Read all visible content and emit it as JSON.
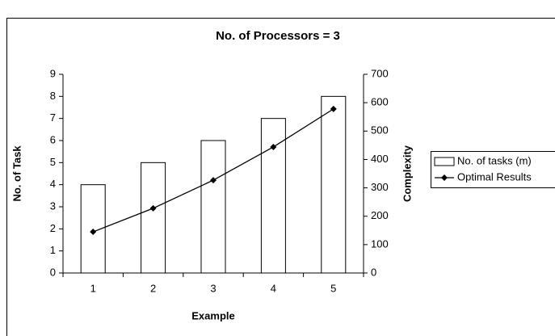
{
  "chart_data": {
    "type": "bar",
    "title": "No. of Processors = 3",
    "xlabel": "Example",
    "ylabel": "No. of Task",
    "y2label": "Complexity",
    "categories": [
      "1",
      "2",
      "3",
      "4",
      "5"
    ],
    "series": [
      {
        "name": "No. of tasks (m)",
        "type": "bar",
        "color": "#ffffff",
        "values": [
          4,
          5,
          6,
          7,
          8
        ]
      },
      {
        "name": "Optimal Results",
        "type": "line",
        "axis": "y2",
        "color": "#000000",
        "values": [
          145,
          228,
          327,
          444,
          578
        ]
      }
    ],
    "ylim": [
      0,
      9
    ],
    "yticks": [
      0,
      1,
      2,
      3,
      4,
      5,
      6,
      7,
      8,
      9
    ],
    "y2lim": [
      0,
      700
    ],
    "y2ticks": [
      0,
      100,
      200,
      300,
      400,
      500,
      600,
      700
    ],
    "legend": "right"
  }
}
